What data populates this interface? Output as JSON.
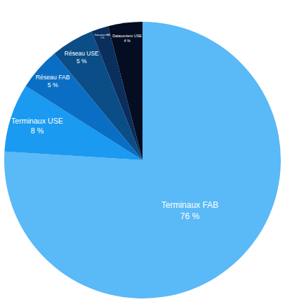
{
  "chart_data": {
    "type": "pie",
    "categories": [
      "Terminaux FAB",
      "Terminaux USE",
      "Réseau FAB",
      "Réseau USE",
      "Datacenters FAB",
      "Datacenters USE"
    ],
    "values": [
      76,
      8,
      5,
      5,
      2,
      4
    ],
    "value_labels": [
      "76 %",
      "8 %",
      "5 %",
      "5 %",
      "2 %",
      "4 %"
    ],
    "colors": [
      "#5ab9f7",
      "#1a9af0",
      "#0a6fc4",
      "#0b4d86",
      "#0a2f5c",
      "#050d22"
    ],
    "data_labels": true
  }
}
